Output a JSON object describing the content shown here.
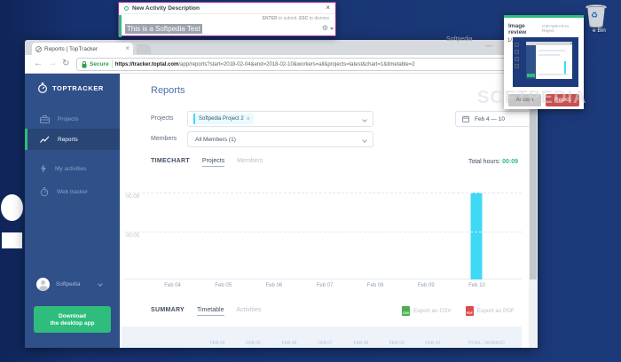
{
  "watermarks": {
    "small": "Softpedia",
    "large": "SOFTPEDIA"
  },
  "desktop": {
    "recycle_bin_label": "e Bin"
  },
  "recycle_bin": {
    "glyph": "♻"
  },
  "activity_popup": {
    "title": "New Activity Description",
    "close": "×",
    "hint_enter": "ENTER",
    "hint_enter_text": " to submit, ",
    "hint_esc": "ESC",
    "hint_esc_text": " to dismiss",
    "input_value": "This is a Softpedia Test",
    "gear": "⚙"
  },
  "review_popup": {
    "title": "Image review",
    "shortcut": "Ctrl+Win+R to Reject",
    "counter": "1/1",
    "accept": "Accept",
    "reject": "Reject",
    "mini_close": "×"
  },
  "browser": {
    "tab_title": "Reports | TopTracker",
    "tab_close": "×",
    "back": "←",
    "forward": "→",
    "reload": "↻",
    "secure": "Secure",
    "url_host": "https://tracker.toptal.com",
    "url_rest": "/app/reports?start=2018-02-04&end=2018-02-10&workers=all&projects=latest&chart=1&timetable=2",
    "minimize": "—"
  },
  "app": {
    "sidebar": {
      "logo": "TOPTRACKER",
      "items": [
        {
          "label": "Projects"
        },
        {
          "label": "Reports"
        },
        {
          "label": "My activities"
        },
        {
          "label": "Web tracker"
        }
      ],
      "user": "Softpedia",
      "download_button": {
        "line1": "Download",
        "line2": "the desktop app"
      }
    },
    "page_title": "Reports",
    "filters": {
      "projects_label": "Projects",
      "project_tag": "Softpedia Project 2",
      "tag_remove": "×",
      "date_range": "Feb 4 — 10",
      "members_label": "Members",
      "members_value": "All Members (1)"
    },
    "timechart": {
      "section_label": "TIMECHART",
      "tabs": [
        {
          "label": "Projects"
        },
        {
          "label": "Members"
        }
      ],
      "total_label": "Total hours:",
      "total_value": "00:09"
    },
    "summary": {
      "section_label": "SUMMARY",
      "tabs": [
        {
          "label": "Timetable"
        },
        {
          "label": "Activities"
        }
      ],
      "export_csv": "Export as CSV",
      "export_pdf": "Export as PDF",
      "csv_icon_label": "CSV",
      "pdf_icon_label": "PDF",
      "table_columns": [
        "FEB 04",
        "FEB 05",
        "FEB 06",
        "FEB 07",
        "FEB 08",
        "FEB 09",
        "FEB 10",
        "TOTAL / WORKED"
      ]
    }
  },
  "chart_data": {
    "type": "bar",
    "title": "TIMECHART — Projects",
    "categories": [
      "Feb 04",
      "Feb 05",
      "Feb 06",
      "Feb 07",
      "Feb 08",
      "Feb 09",
      "Feb 10"
    ],
    "values_minutes": [
      0,
      0,
      0,
      0,
      0,
      0,
      9
    ],
    "values_hhmm": [
      "00:00",
      "00:00",
      "00:00",
      "00:00",
      "00:00",
      "00:00",
      "00:09"
    ],
    "yticks": [
      {
        "minutes": 9,
        "label": "00:09"
      },
      {
        "minutes": 5,
        "label": "00:05"
      }
    ],
    "ymax_minutes": 9,
    "ylim": [
      "00:00",
      "00:09"
    ],
    "bar_color": "#3fd9f6",
    "grid": "dashed-horizontal",
    "legend": "none",
    "total": "00:09"
  }
}
